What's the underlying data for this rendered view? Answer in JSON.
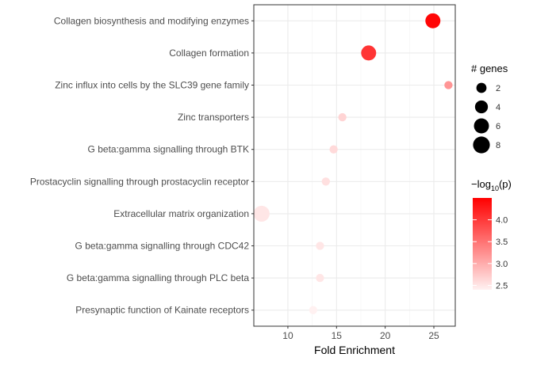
{
  "chart_data": {
    "type": "scatter",
    "title": "",
    "xlabel": "Fold Enrichment",
    "ylabel": "",
    "xlim": [
      6.5,
      27.2
    ],
    "xticks": [
      10,
      15,
      20,
      25
    ],
    "xtick_labels": [
      "10",
      "15",
      "20",
      "25"
    ],
    "grid": true,
    "legend_position": "right",
    "categories": [
      "Collagen biosynthesis and modifying enzymes",
      "Collagen formation",
      "Zinc influx into cells by the SLC39 gene family",
      "Zinc transporters",
      "G beta:gamma signalling through BTK",
      "Prostacyclin signalling through prostacyclin receptor",
      "Extracellular matrix organization",
      "G beta:gamma signalling through CDC42",
      "G beta:gamma signalling through PLC beta",
      "Presynaptic function of Kainate receptors"
    ],
    "points": [
      {
        "category": "Collagen biosynthesis and modifying enzymes",
        "fold_enrichment": 24.9,
        "genes": 6,
        "neg_log10_p": 4.45
      },
      {
        "category": "Collagen formation",
        "fold_enrichment": 18.3,
        "genes": 6,
        "neg_log10_p": 4.05
      },
      {
        "category": "Zinc influx into cells by the SLC39 gene family",
        "fold_enrichment": 26.5,
        "genes": 1,
        "neg_log10_p": 3.2
      },
      {
        "category": "Zinc transporters",
        "fold_enrichment": 15.6,
        "genes": 1,
        "neg_log10_p": 2.65
      },
      {
        "category": "G beta:gamma signalling through BTK",
        "fold_enrichment": 14.7,
        "genes": 1,
        "neg_log10_p": 2.6
      },
      {
        "category": "Prostacyclin signalling through prostacyclin receptor",
        "fold_enrichment": 13.9,
        "genes": 1,
        "neg_log10_p": 2.55
      },
      {
        "category": "Extracellular matrix organization",
        "fold_enrichment": 7.3,
        "genes": 7,
        "neg_log10_p": 2.5
      },
      {
        "category": "G beta:gamma signalling through CDC42",
        "fold_enrichment": 13.3,
        "genes": 1,
        "neg_log10_p": 2.5
      },
      {
        "category": "G beta:gamma signalling through PLC beta",
        "fold_enrichment": 13.3,
        "genes": 1,
        "neg_log10_p": 2.5
      },
      {
        "category": "Presynaptic function of Kainate receptors",
        "fold_enrichment": 12.6,
        "genes": 1,
        "neg_log10_p": 2.4
      }
    ],
    "size_legend": {
      "title": "# genes",
      "values": [
        2,
        4,
        6,
        8
      ],
      "labels": [
        "2",
        "4",
        "6",
        "8"
      ]
    },
    "color_legend": {
      "title_prefix": "−log",
      "title_subscript": "10",
      "title_suffix": "(p)",
      "range": [
        2.4,
        4.5
      ],
      "ticks": [
        2.5,
        3.0,
        3.5,
        4.0
      ],
      "tick_labels": [
        "2.5",
        "3.0",
        "3.5",
        "4.0"
      ],
      "low_color": "#FFF1F1",
      "high_color": "#FF0000"
    }
  }
}
